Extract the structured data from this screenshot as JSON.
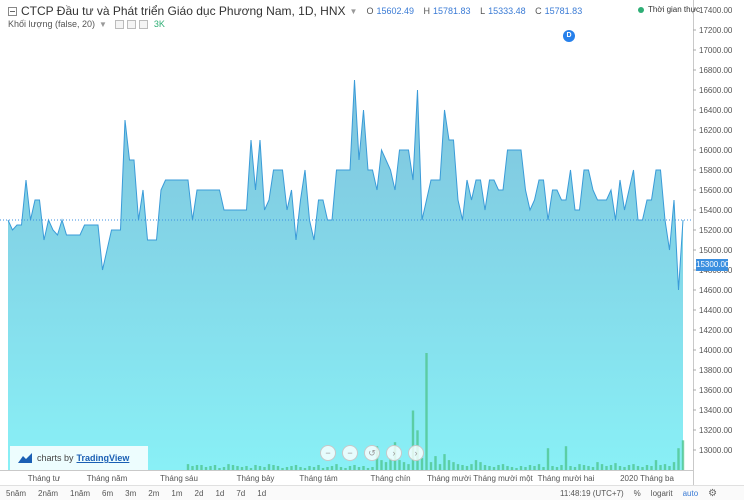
{
  "legend": {
    "symbol": "CTCP Đầu tư và Phát triển Giáo dục Phương Nam, 1D, HNX",
    "ohlc": [
      {
        "k": "O",
        "v": "15602.49"
      },
      {
        "k": "H",
        "v": "15781.83"
      },
      {
        "k": "L",
        "v": "15333.48"
      },
      {
        "k": "C",
        "v": "15781.83"
      }
    ],
    "volume_label": "Khối lượng (false, 20)",
    "volume_value": "3K"
  },
  "realtime_label": "Thời gian thực",
  "dividend_marker": "D",
  "last_price_label": "15300.00",
  "watermark": {
    "prefix": "charts by",
    "brand": "TradingView"
  },
  "nav_buttons": [
    "−",
    "−",
    "↺",
    "›",
    "›"
  ],
  "range_buttons": [
    "5năm",
    "2năm",
    "1năm",
    "6m",
    "3m",
    "2m",
    "1m",
    "2d",
    "1d",
    "7d",
    "1d"
  ],
  "status_bar": {
    "time": "11:48:19 (UTC+7)",
    "percent": "%",
    "log": "logarit",
    "auto": "auto"
  },
  "colors": {
    "line": "#3a9bd8",
    "area_top": "#7fc3dd",
    "area_bottom": "#89f0f6",
    "volume_up": "#4cc38a",
    "price_tag": "#3b8fe0"
  },
  "chart_data": {
    "type": "area",
    "x_tick_labels": [
      "Tháng tư",
      "Tháng năm",
      "Tháng sáu",
      "Tháng bảy",
      "Tháng tám",
      "Tháng chín",
      "Tháng mười",
      "Tháng mười một",
      "Tháng mười hai",
      "2020",
      "Tháng ba"
    ],
    "y_ticks": [
      13000,
      13200,
      13400,
      13600,
      13800,
      14000,
      14200,
      14400,
      14600,
      14800,
      15000,
      15200,
      15400,
      15600,
      15800,
      16000,
      16200,
      16400,
      16600,
      16800,
      17000,
      17200,
      17400
    ],
    "ylim": [
      12800,
      17500
    ],
    "last_price": 15300,
    "price_series": [
      15300,
      15200,
      15250,
      15250,
      15700,
      15300,
      15500,
      15500,
      15100,
      15300,
      15200,
      15150,
      15300,
      15150,
      15150,
      15150,
      15150,
      15250,
      15250,
      15250,
      15250,
      14800,
      15000,
      15200,
      15200,
      15200,
      16300,
      15900,
      15900,
      15300,
      15600,
      15100,
      15100,
      15100,
      15600,
      15700,
      15700,
      15700,
      15700,
      15700,
      15700,
      15300,
      15600,
      15600,
      15600,
      15600,
      15600,
      15600,
      15400,
      15400,
      15400,
      15400,
      15400,
      15400,
      16100,
      15600,
      16100,
      15400,
      15500,
      15800,
      15800,
      15800,
      15400,
      15600,
      15100,
      15500,
      15800,
      15300,
      15100,
      15500,
      15500,
      15300,
      15300,
      15800,
      15800,
      15800,
      15800,
      16700,
      15900,
      16400,
      15800,
      15800,
      15600,
      16000,
      15900,
      15800,
      15600,
      16000,
      16000,
      16000,
      15700,
      16600,
      15300,
      15500,
      15700,
      15700,
      15700,
      16400,
      16100,
      16100,
      15500,
      15300,
      15700,
      15500,
      15700,
      15700,
      15400,
      15700,
      15700,
      15600,
      15600,
      16000,
      16000,
      16000,
      16000,
      15600,
      15400,
      15500,
      15700,
      15700,
      15300,
      15600,
      15600,
      15500,
      15500,
      15800,
      15400,
      15400,
      15800,
      15800,
      15600,
      15500,
      15500,
      15500,
      15600,
      15300,
      15700,
      15400,
      15600,
      15800,
      15300,
      15300,
      15500,
      15500,
      15800,
      15800,
      15300,
      15000,
      15500,
      14600,
      15300
    ],
    "volume_series": [
      0,
      0,
      0,
      0,
      0,
      0,
      0,
      0,
      0,
      0,
      0,
      0,
      0,
      0,
      0,
      0,
      0,
      0,
      0,
      0,
      0,
      0,
      0,
      0,
      0,
      0,
      0,
      0,
      0,
      0,
      0,
      0,
      0,
      0,
      0,
      0,
      0,
      0,
      0,
      0,
      6,
      4,
      5,
      5,
      3,
      4,
      5,
      2,
      3,
      6,
      5,
      4,
      3,
      4,
      2,
      5,
      4,
      3,
      6,
      5,
      4,
      2,
      3,
      4,
      5,
      3,
      2,
      4,
      3,
      5,
      2,
      3,
      4,
      6,
      3,
      2,
      4,
      5,
      3,
      4,
      2,
      3,
      24,
      10,
      8,
      12,
      28,
      10,
      8,
      6,
      60,
      40,
      12,
      118,
      8,
      14,
      6,
      16,
      10,
      8,
      6,
      5,
      4,
      6,
      10,
      8,
      5,
      4,
      3,
      5,
      6,
      4,
      3,
      2,
      4,
      3,
      5,
      4,
      6,
      3,
      22,
      4,
      3,
      5,
      24,
      4,
      3,
      6,
      5,
      4,
      3,
      8,
      6,
      4,
      5,
      7,
      4,
      3,
      5,
      6,
      4,
      3,
      5,
      4,
      10,
      5,
      6,
      4,
      8,
      22,
      30
    ]
  }
}
